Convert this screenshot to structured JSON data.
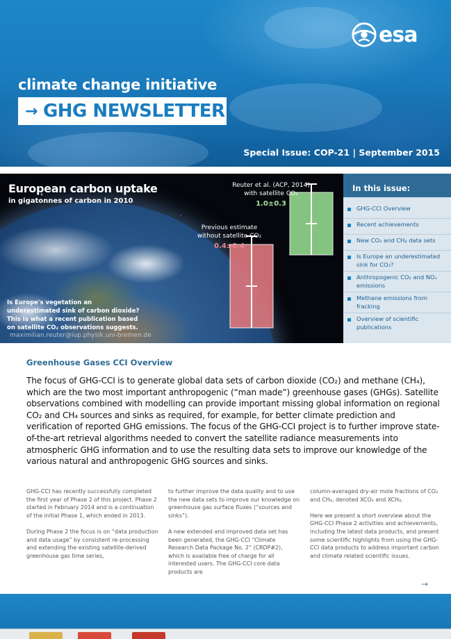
{
  "header": {
    "brand": "esa",
    "initiative": "climate change initiative",
    "newsletter_title": "GHG NEWSLETTER",
    "arrow": "→",
    "special_issue": "Special Issue: COP-21 | September 2015"
  },
  "hero": {
    "title": "European carbon uptake",
    "subtitle": "in gigatonnes of carbon in 2010",
    "caption": "Is Europe's vegetation an underestimated sink of carbon dioxide? This is what a recent publication based on satellite CO₂ observations suggests.",
    "credit": "maximilian.reuter@iup.physik.uni-bremen.de",
    "previous_label_1": "Previous estimate",
    "previous_label_2": "without satellite CO₂",
    "reuter_label_1": "Reuter et al. (ACP, 2014)",
    "reuter_label_2": "with satellite CO₂",
    "colors": {
      "previous": "#d9767b",
      "reuter": "#8fd48a"
    }
  },
  "chart_data": {
    "type": "bar",
    "title": "European carbon uptake",
    "subtitle": "in gigatonnes of carbon in 2010",
    "categories": [
      "Previous estimate without satellite CO₂",
      "Reuter et al. (ACP, 2014) with satellite CO₂"
    ],
    "values": [
      0.4,
      1.0
    ],
    "errors": [
      0.4,
      0.3
    ],
    "value_labels": [
      "0.4±0.4",
      "1.0±0.3"
    ],
    "ylim": [
      0,
      1.3
    ],
    "grid": false
  },
  "issue_panel": {
    "heading": "In this issue:",
    "items": [
      "GHG-CCI Overview",
      "Recent achievements",
      "New CO₂ and CH₄ data sets",
      "Is Europe an underestimated sink for CO₂?",
      "Anthropogenic CO₂ and NOₓ emissions",
      "Methane emissions from fracking",
      "Overview of scientific publications"
    ]
  },
  "article": {
    "section_title": "Greenhouse Gases CCI Overview",
    "lead": "The focus of GHG-CCI is to generate global data sets of carbon dioxide (CO₂) and methane (CH₄), which are the two most important anthropogenic (“man made”) greenhouse gases (GHGs). Satellite observations combined with modelling can provide important missing global information on regional CO₂ and CH₄ sources and sinks as required, for example, for better climate prediction and verification of reported GHG emissions. The focus of the GHG-CCI project is to further improve state-of-the-art retrieval algorithms needed to convert the satellite radiance measurements into atmospheric GHG information and to use the resulting data sets to improve our knowledge of the various natural and anthropogenic GHG sources and sinks.",
    "col1_p1": "GHG-CCI has recently successfully completed the first year of Phase 2 of this project. Phase 2 started in February 2014 and is a continuation of the initial Phase 1, which ended in 2013.",
    "col1_p2": "During Phase 2 the focus is on “data production and data usage” by consistent re-processing and extending the existing satellite-derived greenhouse gas time series,",
    "col2_p1": "to further improve the data quality and to use the new data sets to improve our knowledge on greenhouse gas surface fluxes (“sources and sinks”).",
    "col2_p2": "A new extended and improved data set has been generated, the GHG-CCI “Climate Research Data Package No. 2” (CRDP#2), which is available free of charge for all interested users. The GHG-CCI core data products are",
    "col3_p1": "column-averaged dry-air mole fractions of CO₂ and CH₄, denoted XCO₂ and XCH₄.",
    "col3_p2": "Here we present a short overview about the GHG-CCI Phase 2 activities and achievements, including the latest data products, and present some scientific highlights from using the GHG-CCI data products to address important carbon and climate related scientific issues."
  },
  "footer": {
    "next_arrow": "→"
  }
}
